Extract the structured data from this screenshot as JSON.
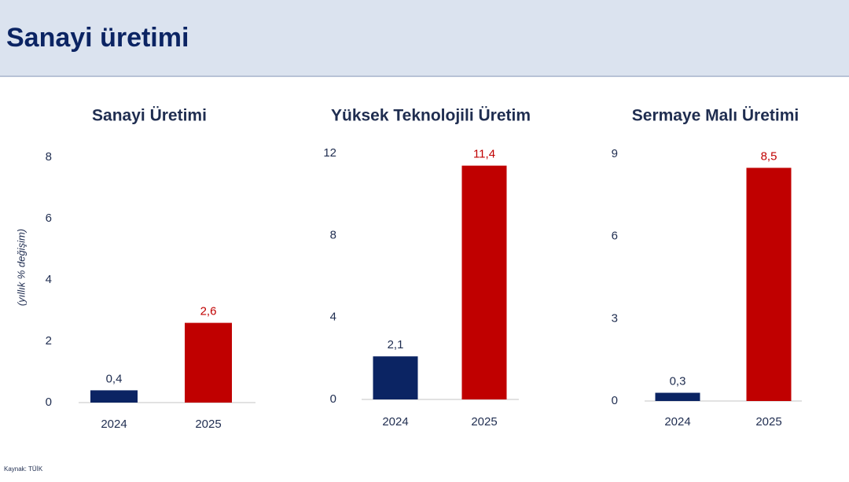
{
  "header": {
    "title": "Sanayi üretimi"
  },
  "source": "Kaynak: TÜİK",
  "chart_data": [
    {
      "type": "bar",
      "title": "Sanayi Üretimi",
      "y_label": "(yıllık % değişim)",
      "categories": [
        "2024",
        "2025"
      ],
      "values": [
        0.4,
        2.6
      ],
      "value_labels": [
        "0,4",
        "2,6"
      ],
      "colors": [
        "#0b2463",
        "#c00000"
      ],
      "ylim": [
        0,
        8
      ],
      "yticks": [
        0,
        2,
        4,
        6,
        8
      ]
    },
    {
      "type": "bar",
      "title": "Yüksek Teknolojili Üretim",
      "categories": [
        "2024",
        "2025"
      ],
      "values": [
        2.1,
        11.4
      ],
      "value_labels": [
        "2,1",
        "11,4"
      ],
      "colors": [
        "#0b2463",
        "#c00000"
      ],
      "ylim": [
        0,
        12
      ],
      "yticks": [
        0,
        4,
        8,
        12
      ]
    },
    {
      "type": "bar",
      "title": "Sermaye Malı Üretimi",
      "categories": [
        "2024",
        "2025"
      ],
      "values": [
        0.3,
        8.5
      ],
      "value_labels": [
        "0,3",
        "8,5"
      ],
      "colors": [
        "#0b2463",
        "#c00000"
      ],
      "ylim": [
        0,
        9
      ],
      "yticks": [
        0,
        3,
        6,
        9
      ]
    }
  ]
}
